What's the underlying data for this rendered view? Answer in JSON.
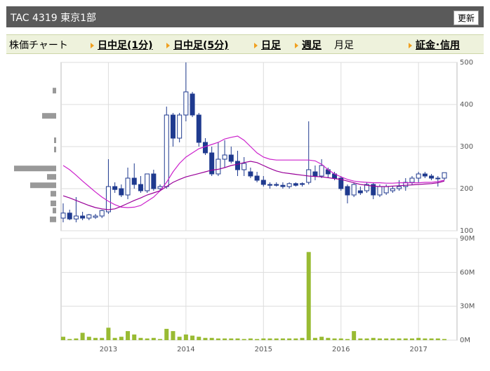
{
  "header": {
    "title": "TAC  4319  東京1部",
    "button": "更新"
  },
  "tabs": [
    "株価チャート",
    "日中足(1分)",
    "日中足(5分)",
    "日足",
    "週足",
    "月足",
    "証金･信用"
  ],
  "chart_data": {
    "type": "candlestick",
    "categories": [
      null,
      null,
      null,
      null,
      null,
      null,
      null,
      "2013",
      null,
      null,
      null,
      null,
      null,
      null,
      null,
      null,
      null,
      null,
      null,
      "2014",
      null,
      null,
      null,
      null,
      null,
      null,
      null,
      null,
      null,
      null,
      null,
      "2015",
      null,
      null,
      null,
      null,
      null,
      null,
      null,
      null,
      null,
      null,
      null,
      "2016",
      null,
      null,
      null,
      null,
      null,
      null,
      null,
      null,
      null,
      null,
      null,
      "2017",
      null,
      null,
      null,
      null
    ],
    "open": [
      130,
      142,
      128,
      135,
      130,
      132,
      135,
      145,
      205,
      200,
      185,
      225,
      210,
      195,
      235,
      200,
      205,
      375,
      320,
      375,
      425,
      375,
      310,
      285,
      235,
      270,
      280,
      265,
      245,
      240,
      230,
      220,
      210,
      210,
      208,
      205,
      212,
      212,
      215,
      240,
      230,
      245,
      235,
      225,
      205,
      185,
      195,
      195,
      210,
      185,
      190,
      195,
      200,
      205,
      215,
      225,
      235,
      230,
      225,
      225
    ],
    "high": [
      165,
      150,
      180,
      145,
      140,
      140,
      150,
      270,
      215,
      210,
      250,
      260,
      230,
      235,
      245,
      210,
      395,
      380,
      380,
      500,
      430,
      380,
      320,
      300,
      310,
      315,
      300,
      290,
      275,
      250,
      240,
      230,
      215,
      215,
      215,
      215,
      215,
      215,
      360,
      255,
      270,
      250,
      240,
      230,
      210,
      215,
      205,
      215,
      215,
      210,
      210,
      205,
      220,
      225,
      230,
      240,
      240,
      235,
      230,
      235
    ],
    "low": [
      120,
      125,
      120,
      125,
      125,
      128,
      130,
      140,
      190,
      180,
      175,
      200,
      190,
      190,
      195,
      195,
      200,
      300,
      310,
      360,
      370,
      300,
      280,
      230,
      230,
      250,
      260,
      230,
      230,
      225,
      215,
      205,
      200,
      205,
      200,
      200,
      205,
      205,
      210,
      220,
      225,
      225,
      220,
      195,
      165,
      180,
      185,
      190,
      175,
      180,
      185,
      190,
      195,
      195,
      210,
      215,
      225,
      220,
      205,
      220
    ],
    "close": [
      142,
      128,
      135,
      130,
      138,
      135,
      148,
      205,
      198,
      185,
      225,
      210,
      195,
      235,
      200,
      205,
      375,
      320,
      375,
      430,
      375,
      310,
      285,
      235,
      270,
      280,
      265,
      245,
      260,
      230,
      220,
      210,
      208,
      208,
      205,
      212,
      208,
      210,
      245,
      230,
      255,
      235,
      225,
      200,
      185,
      210,
      190,
      210,
      185,
      205,
      205,
      200,
      205,
      215,
      225,
      235,
      230,
      225,
      225,
      238
    ],
    "ma_series": [
      {
        "color": "#cc22cc",
        "values": [
          255,
          245,
          232,
          218,
          205,
          192,
          180,
          170,
          162,
          156,
          155,
          156,
          160,
          170,
          180,
          195,
          215,
          240,
          260,
          275,
          285,
          295,
          300,
          305,
          310,
          318,
          322,
          325,
          315,
          300,
          285,
          275,
          270,
          268,
          268,
          268,
          268,
          268,
          268,
          266,
          258,
          245,
          235,
          228,
          222,
          218,
          216,
          215,
          214,
          214,
          213,
          213,
          214,
          214,
          214,
          214,
          215,
          215,
          217,
          220
        ]
      },
      {
        "color": "#990099",
        "values": [
          183,
          178,
          172,
          166,
          160,
          155,
          152,
          150,
          152,
          158,
          165,
          172,
          178,
          185,
          190,
          195,
          205,
          215,
          222,
          228,
          232,
          236,
          240,
          244,
          246,
          250,
          255,
          258,
          262,
          265,
          262,
          255,
          248,
          242,
          238,
          236,
          234,
          232,
          230,
          229,
          228,
          226,
          224,
          222,
          218,
          214,
          210,
          208,
          206,
          205,
          205,
          206,
          207,
          208,
          209,
          210,
          211,
          212,
          214,
          218
        ]
      }
    ],
    "ylim": [
      100,
      500
    ],
    "yticks": [
      100,
      200,
      300,
      400,
      500
    ],
    "volume": [
      3000000,
      1000000,
      1500000,
      6500000,
      3000000,
      2000000,
      2000000,
      11000000,
      2000000,
      3000000,
      8000000,
      5000000,
      2000000,
      1500000,
      2000000,
      1000000,
      10000000,
      8000000,
      3000000,
      5000000,
      4000000,
      3000000,
      2000000,
      2000000,
      1500000,
      1500000,
      1500000,
      1500000,
      1000000,
      1500000,
      1000000,
      1500000,
      1500000,
      1500000,
      1500000,
      1500000,
      1500000,
      2000000,
      78000000,
      2000000,
      3000000,
      2000000,
      1500000,
      1500000,
      1000000,
      8000000,
      1500000,
      1500000,
      2000000,
      1500000,
      1500000,
      1500000,
      1500000,
      1500000,
      1500000,
      2000000,
      1500000,
      1500000,
      1500000,
      1000000
    ],
    "volume_color": "#99bb33",
    "vlim": [
      0,
      90000000
    ],
    "vticks": [
      {
        "value": 0,
        "label": "0M"
      },
      {
        "value": 30000000,
        "label": "30M"
      },
      {
        "value": 60000000,
        "label": "60M"
      },
      {
        "value": 90000000,
        "label": "90M"
      }
    ],
    "profile": {
      "prices": [
        433,
        373,
        315,
        293,
        248,
        228,
        208,
        188,
        165,
        148,
        127
      ],
      "values": [
        5,
        20,
        3,
        3,
        60,
        13,
        37,
        8,
        8,
        5,
        9
      ],
      "color": "#999999"
    },
    "grid": true
  }
}
